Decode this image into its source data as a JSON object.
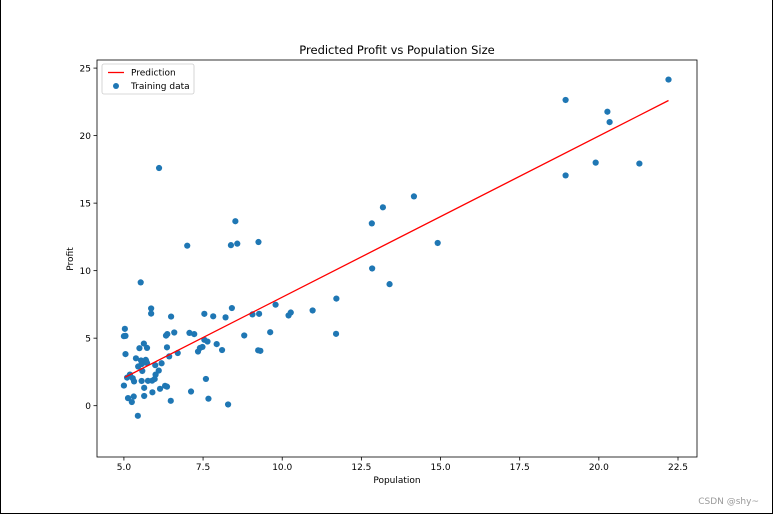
{
  "chart_data": {
    "type": "scatter",
    "title": "Predicted Profit vs Population Size",
    "xlabel": "Population",
    "ylabel": "Profit",
    "xlim": [
      4.15,
      23.1
    ],
    "ylim": [
      -3.8,
      25.6
    ],
    "xticks": [
      5.0,
      7.5,
      10.0,
      12.5,
      15.0,
      17.5,
      20.0,
      22.5
    ],
    "xtick_labels": [
      "5.0",
      "7.5",
      "10.0",
      "12.5",
      "15.0",
      "17.5",
      "20.0",
      "22.5"
    ],
    "yticks": [
      0,
      5,
      10,
      15,
      20,
      25
    ],
    "ytick_labels": [
      "0",
      "5",
      "10",
      "15",
      "20",
      "25"
    ],
    "grid": false,
    "legend_position": "upper-left",
    "series": [
      {
        "name": "Prediction",
        "kind": "line",
        "color": "#ff0000",
        "x": [
          5.03,
          22.2
        ],
        "y": [
          2.1,
          22.6
        ]
      },
      {
        "name": "Training data",
        "kind": "scatter",
        "color": "#1f77b4",
        "x": [
          6.11,
          5.53,
          8.52,
          7.0,
          5.86,
          8.38,
          7.48,
          8.58,
          6.49,
          5.05,
          5.71,
          14.16,
          5.73,
          8.41,
          5.64,
          5.38,
          6.37,
          5.13,
          6.43,
          7.07,
          6.19,
          20.27,
          5.49,
          6.33,
          5.56,
          18.95,
          12.83,
          10.96,
          13.18,
          22.2,
          5.25,
          6.59,
          9.25,
          5.89,
          8.21,
          7.93,
          8.1,
          5.69,
          6.48,
          5.86,
          6.3,
          5.64,
          5.63,
          5.32,
          9.27,
          5.1,
          5.03,
          21.28,
          9.24,
          6.7,
          7.12,
          5.05,
          5.76,
          9.31,
          11.71,
          7.54,
          7.59,
          5.54,
          7.34,
          10.2,
          5.56,
          11.7,
          9.62,
          13.39,
          12.84,
          9.79,
          5.28,
          9.06,
          8.8,
          5.0,
          18.95,
          19.9,
          20.34,
          7.82,
          5.58,
          7.4,
          7.67,
          5.19,
          6.36,
          6.0,
          7.22,
          5.9,
          6.14,
          7.64,
          7.54,
          5.31,
          8.29,
          5.0,
          14.91,
          6.36,
          5.73,
          5.44,
          5.45,
          6.1,
          10.27,
          5.7,
          5.99,
          5.97
        ],
        "y": [
          17.6,
          9.13,
          13.66,
          11.85,
          6.82,
          11.89,
          4.35,
          12.0,
          6.6,
          3.82,
          3.25,
          15.5,
          3.16,
          7.23,
          0.72,
          3.51,
          5.3,
          0.56,
          3.65,
          5.39,
          3.14,
          21.77,
          4.26,
          5.19,
          3.08,
          22.64,
          13.5,
          7.05,
          14.69,
          24.15,
          0.27,
          5.42,
          12.12,
          1.85,
          6.54,
          4.56,
          4.12,
          3.39,
          0.36,
          7.2,
          1.47,
          1.32,
          4.6,
          1.8,
          6.8,
          2.08,
          5.69,
          17.93,
          4.1,
          3.9,
          1.05,
          5.17,
          1.84,
          4.06,
          7.93,
          4.88,
          1.98,
          3.35,
          4.01,
          6.68,
          1.83,
          5.32,
          5.44,
          9.0,
          10.16,
          7.48,
          2.03,
          6.76,
          5.2,
          1.49,
          17.05,
          18.0,
          21.0,
          6.62,
          2.57,
          4.27,
          0.52,
          2.3,
          1.41,
          2.3,
          5.3,
          0.99,
          1.25,
          4.75,
          6.8,
          0.68,
          0.09,
          5.15,
          12.05,
          4.32,
          4.28,
          -0.75,
          2.9,
          2.6,
          6.9,
          3.2,
          3.0,
          1.97
        ]
      }
    ]
  },
  "watermark": "CSDN @shy~"
}
